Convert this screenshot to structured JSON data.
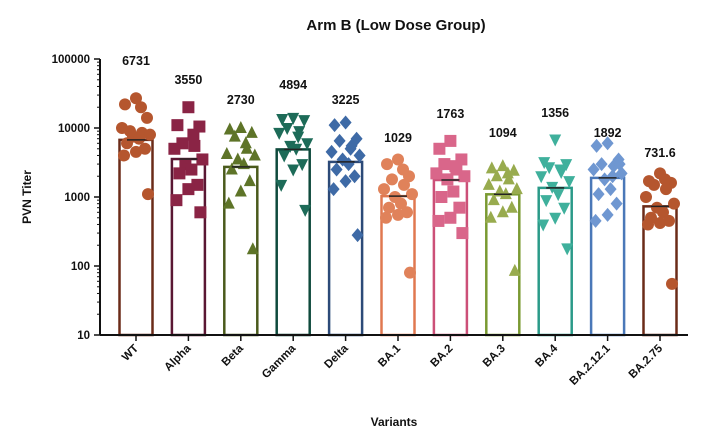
{
  "chart_data": {
    "type": "bar",
    "title": "Arm B (Low Dose Group)",
    "xlabel": "Variants",
    "ylabel": "PVN Titer",
    "yscale": "log",
    "ylim": [
      10,
      100000
    ],
    "yticks": [
      "10",
      "100",
      "1000",
      "10000",
      "100000"
    ],
    "grid": false,
    "categories": [
      "WT",
      "Alpha",
      "Beta",
      "Gamma",
      "Delta",
      "BA.1",
      "BA.2",
      "BA.3",
      "BA.4",
      "BA.2.12.1",
      "BA.2.75"
    ],
    "bar_values": [
      6731,
      3550,
      2730,
      4894,
      3225,
      1029,
      1763,
      1094,
      1356,
      1892,
      731.6
    ],
    "value_labels": [
      "6731",
      "3550",
      "2730",
      "4894",
      "3225",
      "1029",
      "1763",
      "1094",
      "1356",
      "1892",
      "731.6"
    ],
    "colors": [
      "#b5562e",
      "#8a2445",
      "#5e7428",
      "#1d6b58",
      "#3e6aa6",
      "#e0825a",
      "#d9668a",
      "#98ab4e",
      "#3fb09c",
      "#6f97d1",
      "#b5562e"
    ],
    "edge_colors": [
      "#6b2b18",
      "#5a1733",
      "#4a5a1c",
      "#0f4a3c",
      "#2c4a78",
      "#e07850",
      "#cc5078",
      "#7a9a32",
      "#2a9a88",
      "#4a78b8",
      "#6b2b18"
    ],
    "markers": [
      "circle",
      "square",
      "triangle-up",
      "triangle-down",
      "diamond",
      "circle",
      "square",
      "triangle-up",
      "triangle-down",
      "diamond",
      "circle"
    ],
    "points": [
      [
        27000,
        22000,
        14000,
        9000,
        8500,
        10000,
        8000,
        7500,
        7000,
        6000,
        5000,
        4500,
        4000,
        1100,
        20000
      ],
      [
        20000,
        11000,
        10500,
        6000,
        5500,
        5000,
        3500,
        3000,
        2500,
        2200,
        1500,
        1300,
        900,
        600,
        8000
      ],
      [
        10000,
        9500,
        8500,
        7500,
        5000,
        4200,
        4000,
        3500,
        3000,
        2500,
        1700,
        1200,
        800,
        175,
        6000
      ],
      [
        14000,
        13500,
        13000,
        10000,
        9000,
        8500,
        6000,
        5500,
        5000,
        4000,
        3000,
        2500,
        1500,
        650,
        7500
      ],
      [
        12000,
        11000,
        7000,
        6500,
        5500,
        4500,
        4000,
        3500,
        3000,
        2500,
        2000,
        1700,
        1300,
        280,
        5000
      ],
      [
        3500,
        3000,
        2000,
        1800,
        1500,
        1300,
        1100,
        1000,
        800,
        700,
        600,
        550,
        500,
        80,
        2500
      ],
      [
        6500,
        5000,
        3500,
        3000,
        2500,
        2200,
        2000,
        1800,
        1200,
        1000,
        700,
        500,
        450,
        300,
        2800
      ],
      [
        2800,
        2600,
        2400,
        2000,
        1800,
        1500,
        1300,
        1200,
        1100,
        900,
        700,
        600,
        500,
        85,
        2200
      ],
      [
        6800,
        3200,
        3000,
        2700,
        2300,
        2000,
        1700,
        1400,
        1100,
        900,
        700,
        500,
        400,
        180,
        2500
      ],
      [
        6000,
        5500,
        3500,
        3000,
        2800,
        2500,
        2200,
        1800,
        1300,
        1100,
        800,
        550,
        450,
        3000,
        2000
      ],
      [
        2200,
        1700,
        1600,
        1500,
        1300,
        1000,
        800,
        700,
        600,
        500,
        450,
        420,
        400,
        55,
        1800
      ]
    ]
  }
}
